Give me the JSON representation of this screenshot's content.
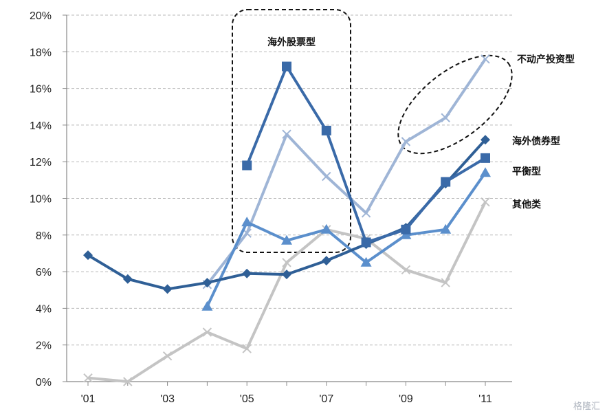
{
  "chart_data": {
    "type": "line",
    "title": "",
    "xlabel": "",
    "ylabel": "",
    "x": [
      "'01",
      "'02",
      "'03",
      "'04",
      "'05",
      "'06",
      "'07",
      "'08",
      "'09",
      "'10",
      "'11"
    ],
    "x_tick_labels": [
      "'01",
      "'03",
      "'05",
      "'07",
      "'09",
      "'11"
    ],
    "ylim": [
      0,
      20
    ],
    "y_tick_labels": [
      "0%",
      "2%",
      "4%",
      "6%",
      "8%",
      "10%",
      "12%",
      "14%",
      "16%",
      "18%",
      "20%"
    ],
    "grid": "horizontal dashed",
    "series": [
      {
        "name": "海外债券型",
        "color": "#2f5f96",
        "marker": "diamond",
        "values": [
          6.9,
          5.6,
          5.05,
          5.4,
          5.9,
          5.85,
          6.6,
          7.5,
          8.4,
          10.8,
          13.2
        ]
      },
      {
        "name": "海外股票型",
        "color": "#3a6aa8",
        "marker": "square",
        "values": [
          null,
          null,
          null,
          null,
          11.8,
          17.2,
          13.7,
          7.6,
          8.3,
          10.9,
          12.2
        ]
      },
      {
        "name": "平衡型",
        "color": "#5b8fcc",
        "marker": "triangle",
        "values": [
          null,
          null,
          null,
          4.1,
          8.7,
          7.7,
          8.3,
          6.5,
          8.0,
          8.3,
          11.4
        ]
      },
      {
        "name": "不动产投资型",
        "color": "#9fb5d6",
        "marker": "x",
        "values": [
          null,
          null,
          null,
          5.3,
          8.1,
          13.5,
          11.2,
          9.2,
          13.1,
          14.4,
          17.6
        ]
      },
      {
        "name": "其他类",
        "color": "#c4c4c4",
        "marker": "x",
        "values": [
          0.2,
          0.0,
          1.4,
          2.7,
          1.8,
          6.5,
          8.3,
          7.8,
          6.1,
          5.4,
          9.8
        ]
      }
    ],
    "annotations": [
      {
        "text": "海外股票型",
        "shape": "dashed-rounded-box"
      },
      {
        "text": "",
        "shape": "dashed-ellipse"
      }
    ]
  },
  "watermark": "格隆汇"
}
